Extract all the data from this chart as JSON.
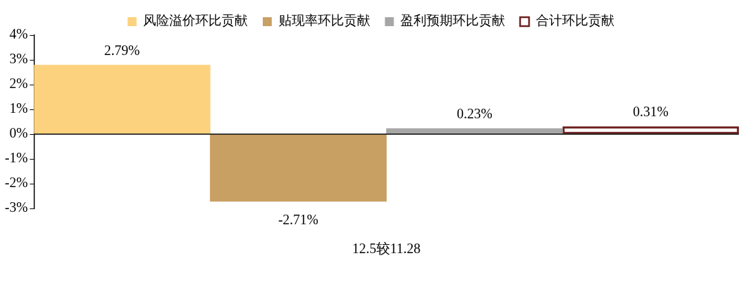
{
  "chart_data": {
    "type": "bar",
    "categories": [
      "12.5较11.28"
    ],
    "series": [
      {
        "name": "风险溢价环比贡献",
        "color": "#fdd27f",
        "values": [
          2.79
        ],
        "value_labels": [
          "2.79%"
        ]
      },
      {
        "name": "贴现率环比贡献",
        "color": "#c9a063",
        "values": [
          -2.71
        ],
        "value_labels": [
          "-2.71%"
        ]
      },
      {
        "name": "盈利预期环比贡献",
        "color": "#a6a6a6",
        "values": [
          0.23
        ],
        "value_labels": [
          "0.23%"
        ]
      },
      {
        "name": "合计环比贡献",
        "color": "#6e1f1f",
        "values": [
          0.31
        ],
        "value_labels": [
          "0.31%"
        ],
        "line_style": "dashed"
      }
    ],
    "ylim": [
      -3,
      4
    ],
    "yticks": [
      {
        "value": -3,
        "label": "-3%"
      },
      {
        "value": -2,
        "label": "-2%"
      },
      {
        "value": -1,
        "label": "-1%"
      },
      {
        "value": 0,
        "label": "0%"
      },
      {
        "value": 1,
        "label": "1%"
      },
      {
        "value": 2,
        "label": "2%"
      },
      {
        "value": 3,
        "label": "3%"
      },
      {
        "value": 4,
        "label": "4%"
      }
    ],
    "ref_lines": [
      {
        "axis": "y",
        "value": 0,
        "color": "#000000"
      }
    ],
    "grid": false,
    "legend": "top"
  }
}
